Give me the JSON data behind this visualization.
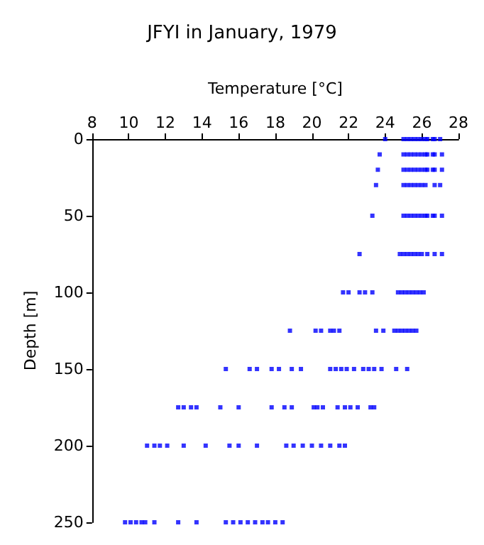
{
  "chart_data": {
    "type": "scatter",
    "title": "JFYI in January, 1979",
    "xlabel": "Temperature [°C]",
    "ylabel": "Depth [m]",
    "xlim": [
      8,
      28
    ],
    "xticks": [
      8,
      10,
      12,
      14,
      16,
      18,
      20,
      22,
      24,
      26,
      28
    ],
    "ylim": [
      250,
      0
    ],
    "yticks": [
      0,
      50,
      100,
      150,
      200,
      250
    ],
    "grid": false,
    "marker": "square",
    "series": [
      {
        "color": "#0000ff",
        "x": [
          24.0,
          25.0,
          25.2,
          25.4,
          25.6,
          25.8,
          26.0,
          26.2,
          26.3,
          26.6,
          26.7,
          27.0,
          23.7,
          25.0,
          25.2,
          25.4,
          25.6,
          25.8,
          26.0,
          26.2,
          26.3,
          26.6,
          26.7,
          27.1,
          23.6,
          25.0,
          25.2,
          25.4,
          25.6,
          25.8,
          26.0,
          26.2,
          26.3,
          26.6,
          26.7,
          27.1,
          23.5,
          25.0,
          25.2,
          25.4,
          25.6,
          25.8,
          26.0,
          26.2,
          26.7,
          27.0,
          23.3,
          25.0,
          25.2,
          25.4,
          25.6,
          25.8,
          26.0,
          26.2,
          26.3,
          26.6,
          26.7,
          27.1,
          22.6,
          24.8,
          25.0,
          25.2,
          25.4,
          25.6,
          25.8,
          26.0,
          26.3,
          26.7,
          27.1,
          21.7,
          22.0,
          22.6,
          22.9,
          23.3,
          24.7,
          24.9,
          25.1,
          25.3,
          25.5,
          25.7,
          25.9,
          26.1,
          18.8,
          20.2,
          20.5,
          21.0,
          21.2,
          21.5,
          23.5,
          23.9,
          24.5,
          24.7,
          24.9,
          25.1,
          25.3,
          25.5,
          25.7,
          15.3,
          16.6,
          17.0,
          17.8,
          18.2,
          18.9,
          19.4,
          21.0,
          21.3,
          21.6,
          21.9,
          22.3,
          22.8,
          23.1,
          23.4,
          23.8,
          24.6,
          25.2,
          12.7,
          13.0,
          13.4,
          13.7,
          15.0,
          16.0,
          17.8,
          18.5,
          18.9,
          20.1,
          20.3,
          20.6,
          21.4,
          21.8,
          22.1,
          22.5,
          23.2,
          23.4,
          11.0,
          11.4,
          11.7,
          12.1,
          13.0,
          14.2,
          15.5,
          16.0,
          17.0,
          18.6,
          19.0,
          19.5,
          20.0,
          20.5,
          21.0,
          21.5,
          21.8,
          9.8,
          10.1,
          10.4,
          10.7,
          10.9,
          11.4,
          12.7,
          13.7,
          15.3,
          15.7,
          16.1,
          16.5,
          16.9,
          17.3,
          17.6,
          18.0,
          18.4
        ],
        "values": [
          0,
          0,
          0,
          0,
          0,
          0,
          0,
          0,
          0,
          0,
          0,
          0,
          10,
          10,
          10,
          10,
          10,
          10,
          10,
          10,
          10,
          10,
          10,
          10,
          20,
          20,
          20,
          20,
          20,
          20,
          20,
          20,
          20,
          20,
          20,
          20,
          30,
          30,
          30,
          30,
          30,
          30,
          30,
          30,
          30,
          30,
          50,
          50,
          50,
          50,
          50,
          50,
          50,
          50,
          50,
          50,
          50,
          50,
          75,
          75,
          75,
          75,
          75,
          75,
          75,
          75,
          75,
          75,
          75,
          100,
          100,
          100,
          100,
          100,
          100,
          100,
          100,
          100,
          100,
          100,
          100,
          100,
          125,
          125,
          125,
          125,
          125,
          125,
          125,
          125,
          125,
          125,
          125,
          125,
          125,
          125,
          125,
          150,
          150,
          150,
          150,
          150,
          150,
          150,
          150,
          150,
          150,
          150,
          150,
          150,
          150,
          150,
          150,
          150,
          150,
          175,
          175,
          175,
          175,
          175,
          175,
          175,
          175,
          175,
          175,
          175,
          175,
          175,
          175,
          175,
          175,
          175,
          175,
          200,
          200,
          200,
          200,
          200,
          200,
          200,
          200,
          200,
          200,
          200,
          200,
          200,
          200,
          200,
          200,
          200,
          250,
          250,
          250,
          250,
          250,
          250,
          250,
          250,
          250,
          250,
          250,
          250,
          250,
          250,
          250,
          250,
          250
        ]
      }
    ]
  }
}
